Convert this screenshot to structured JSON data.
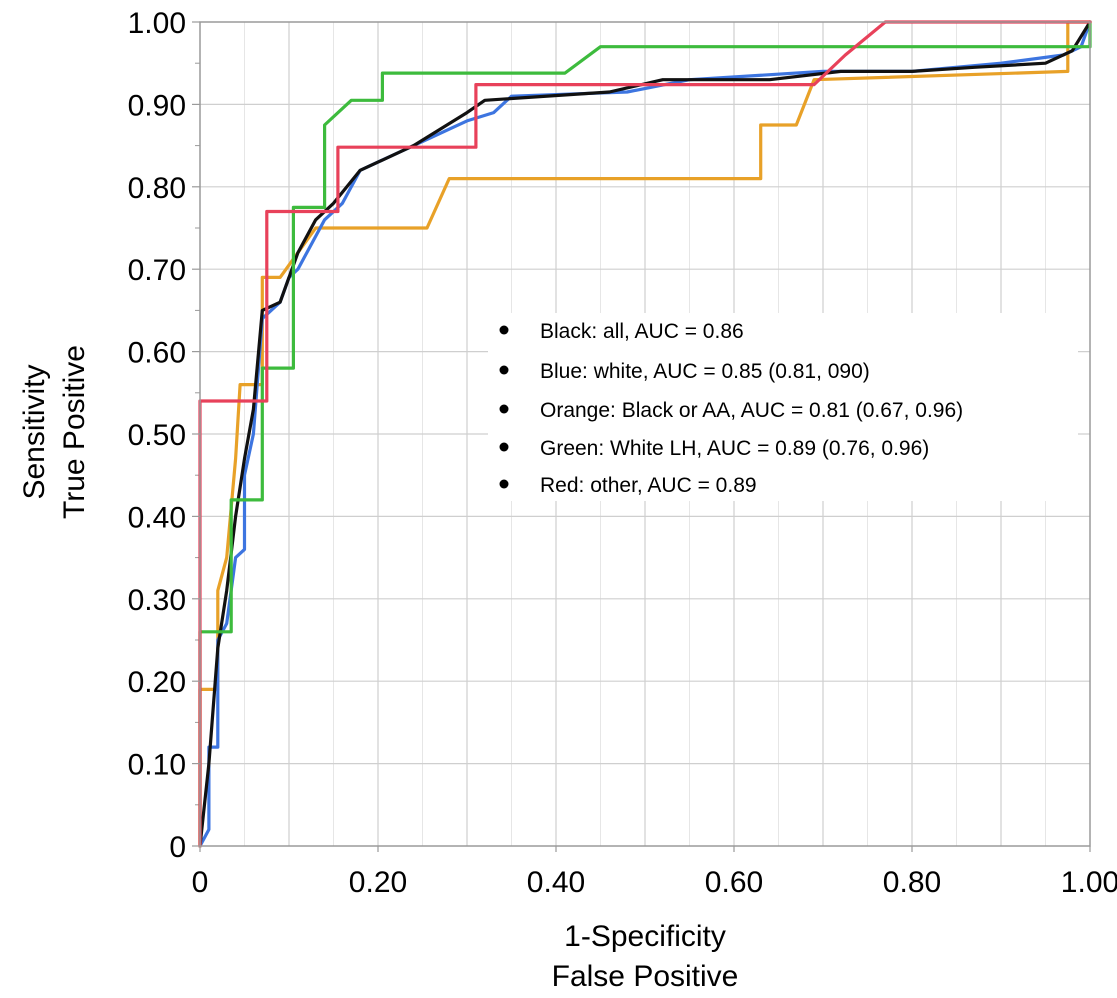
{
  "chart_data": {
    "type": "line",
    "xlabel_lines": [
      "1-Specificity",
      "False Positive"
    ],
    "ylabel_lines": [
      "Sensitivity",
      "True Positive"
    ],
    "xlim": [
      0,
      1
    ],
    "ylim": [
      0,
      1
    ],
    "grid": true,
    "legend_placement": "center-right",
    "x_ticks": [
      {
        "v": 0,
        "label": "0"
      },
      {
        "v": 0.2,
        "label": "0.20"
      },
      {
        "v": 0.4,
        "label": "0.40"
      },
      {
        "v": 0.6,
        "label": "0.60"
      },
      {
        "v": 0.8,
        "label": "0.80"
      },
      {
        "v": 1.0,
        "label": "1.00"
      }
    ],
    "y_ticks": [
      {
        "v": 0,
        "label": "0"
      },
      {
        "v": 0.1,
        "label": "0.10"
      },
      {
        "v": 0.2,
        "label": "0.20"
      },
      {
        "v": 0.3,
        "label": "0.30"
      },
      {
        "v": 0.4,
        "label": "0.40"
      },
      {
        "v": 0.5,
        "label": "0.50"
      },
      {
        "v": 0.6,
        "label": "0.60"
      },
      {
        "v": 0.7,
        "label": "0.70"
      },
      {
        "v": 0.8,
        "label": "0.80"
      },
      {
        "v": 0.9,
        "label": "0.90"
      },
      {
        "v": 1.0,
        "label": "1.00"
      }
    ],
    "legend": [
      "Black: all, AUC = 0.86",
      "Blue: white, AUC = 0.85 (0.81, 090)",
      "Orange: Black or AA, AUC = 0.81 (0.67, 0.96)",
      "Green: White LH, AUC = 0.89 (0.76, 0.96)",
      "Red: other, AUC = 0.89"
    ],
    "series": [
      {
        "color": "#e8a128",
        "points": [
          [
            0,
            0
          ],
          [
            0,
            0.19
          ],
          [
            0.02,
            0.19
          ],
          [
            0.02,
            0.31
          ],
          [
            0.03,
            0.35
          ],
          [
            0.04,
            0.47
          ],
          [
            0.045,
            0.56
          ],
          [
            0.07,
            0.56
          ],
          [
            0.07,
            0.69
          ],
          [
            0.09,
            0.69
          ],
          [
            0.11,
            0.72
          ],
          [
            0.13,
            0.75
          ],
          [
            0.255,
            0.75
          ],
          [
            0.28,
            0.81
          ],
          [
            0.63,
            0.81
          ],
          [
            0.63,
            0.875
          ],
          [
            0.67,
            0.875
          ],
          [
            0.69,
            0.93
          ],
          [
            0.975,
            0.94
          ],
          [
            0.975,
            1.0
          ],
          [
            1.0,
            1.0
          ]
        ]
      },
      {
        "color": "#3d75e0",
        "points": [
          [
            0,
            0
          ],
          [
            0.01,
            0.02
          ],
          [
            0.01,
            0.12
          ],
          [
            0.02,
            0.12
          ],
          [
            0.02,
            0.25
          ],
          [
            0.03,
            0.27
          ],
          [
            0.04,
            0.35
          ],
          [
            0.05,
            0.36
          ],
          [
            0.05,
            0.45
          ],
          [
            0.06,
            0.5
          ],
          [
            0.07,
            0.64
          ],
          [
            0.09,
            0.66
          ],
          [
            0.1,
            0.69
          ],
          [
            0.11,
            0.7
          ],
          [
            0.12,
            0.72
          ],
          [
            0.14,
            0.76
          ],
          [
            0.16,
            0.78
          ],
          [
            0.18,
            0.82
          ],
          [
            0.22,
            0.84
          ],
          [
            0.26,
            0.86
          ],
          [
            0.3,
            0.88
          ],
          [
            0.33,
            0.89
          ],
          [
            0.35,
            0.91
          ],
          [
            0.48,
            0.915
          ],
          [
            0.55,
            0.93
          ],
          [
            0.7,
            0.94
          ],
          [
            0.8,
            0.94
          ],
          [
            0.9,
            0.95
          ],
          [
            0.97,
            0.96
          ],
          [
            0.99,
            0.97
          ],
          [
            1.0,
            1.0
          ]
        ]
      },
      {
        "color": "#111111",
        "points": [
          [
            0,
            0
          ],
          [
            0.01,
            0.1
          ],
          [
            0.02,
            0.24
          ],
          [
            0.03,
            0.31
          ],
          [
            0.04,
            0.4
          ],
          [
            0.05,
            0.47
          ],
          [
            0.06,
            0.53
          ],
          [
            0.07,
            0.65
          ],
          [
            0.09,
            0.66
          ],
          [
            0.11,
            0.72
          ],
          [
            0.13,
            0.76
          ],
          [
            0.15,
            0.78
          ],
          [
            0.18,
            0.82
          ],
          [
            0.2,
            0.83
          ],
          [
            0.24,
            0.85
          ],
          [
            0.27,
            0.87
          ],
          [
            0.3,
            0.89
          ],
          [
            0.32,
            0.905
          ],
          [
            0.46,
            0.915
          ],
          [
            0.52,
            0.93
          ],
          [
            0.64,
            0.93
          ],
          [
            0.72,
            0.94
          ],
          [
            0.8,
            0.94
          ],
          [
            0.87,
            0.945
          ],
          [
            0.95,
            0.95
          ],
          [
            0.98,
            0.965
          ],
          [
            1.0,
            1.0
          ]
        ]
      },
      {
        "color": "#3dbb3d",
        "points": [
          [
            0,
            0
          ],
          [
            0,
            0.26
          ],
          [
            0.035,
            0.26
          ],
          [
            0.035,
            0.42
          ],
          [
            0.07,
            0.42
          ],
          [
            0.07,
            0.58
          ],
          [
            0.105,
            0.58
          ],
          [
            0.105,
            0.775
          ],
          [
            0.14,
            0.775
          ],
          [
            0.14,
            0.875
          ],
          [
            0.17,
            0.905
          ],
          [
            0.205,
            0.905
          ],
          [
            0.205,
            0.938
          ],
          [
            0.41,
            0.938
          ],
          [
            0.45,
            0.97
          ],
          [
            1.0,
            0.97
          ],
          [
            1.0,
            1.0
          ]
        ]
      },
      {
        "color": "#e8415a",
        "points": [
          [
            0,
            0
          ],
          [
            0,
            0.54
          ],
          [
            0.075,
            0.54
          ],
          [
            0.075,
            0.77
          ],
          [
            0.155,
            0.77
          ],
          [
            0.155,
            0.848
          ],
          [
            0.31,
            0.848
          ],
          [
            0.31,
            0.924
          ],
          [
            0.69,
            0.924
          ],
          [
            0.725,
            0.96
          ],
          [
            0.77,
            1.0
          ],
          [
            1.0,
            1.0
          ]
        ]
      }
    ]
  }
}
